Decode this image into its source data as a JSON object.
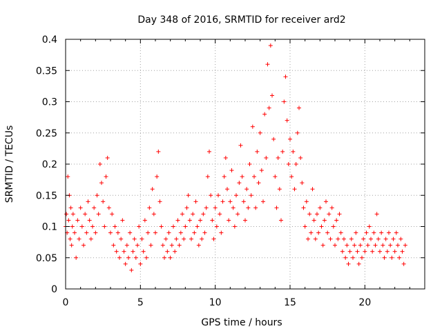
{
  "chart_data": {
    "type": "scatter",
    "title": "Day 348 of 2016, SRMTID for receiver ard2",
    "xlabel": "GPS time / hours",
    "ylabel": "SRMTID / TECUs",
    "xlim": [
      0,
      24
    ],
    "ylim": [
      0,
      0.4
    ],
    "xticks": [
      "0",
      "5",
      "10",
      "15",
      "20"
    ],
    "yticks": [
      "0",
      "0.05",
      "0.1",
      "0.15",
      "0.2",
      "0.25",
      "0.3",
      "0.35",
      "0.4"
    ],
    "grid": true,
    "marker": "+",
    "color": "#ff0000",
    "series": [
      {
        "name": "ard2",
        "points": [
          [
            0.0,
            0.1
          ],
          [
            0.05,
            0.12
          ],
          [
            0.1,
            0.09
          ],
          [
            0.15,
            0.18
          ],
          [
            0.2,
            0.11
          ],
          [
            0.25,
            0.15
          ],
          [
            0.3,
            0.08
          ],
          [
            0.35,
            0.13
          ],
          [
            0.4,
            0.07
          ],
          [
            0.45,
            0.1
          ],
          [
            0.5,
            0.12
          ],
          [
            0.6,
            0.09
          ],
          [
            0.7,
            0.05
          ],
          [
            0.8,
            0.11
          ],
          [
            0.9,
            0.08
          ],
          [
            1.0,
            0.13
          ],
          [
            1.1,
            0.1
          ],
          [
            1.2,
            0.07
          ],
          [
            1.3,
            0.12
          ],
          [
            1.4,
            0.09
          ],
          [
            1.5,
            0.14
          ],
          [
            1.6,
            0.11
          ],
          [
            1.7,
            0.08
          ],
          [
            1.8,
            0.1
          ],
          [
            1.9,
            0.13
          ],
          [
            2.0,
            0.09
          ],
          [
            2.1,
            0.15
          ],
          [
            2.2,
            0.12
          ],
          [
            2.3,
            0.2
          ],
          [
            2.4,
            0.17
          ],
          [
            2.5,
            0.14
          ],
          [
            2.6,
            0.1
          ],
          [
            2.7,
            0.18
          ],
          [
            2.8,
            0.21
          ],
          [
            2.9,
            0.13
          ],
          [
            3.0,
            0.09
          ],
          [
            3.1,
            0.12
          ],
          [
            3.2,
            0.07
          ],
          [
            3.3,
            0.1
          ],
          [
            3.4,
            0.06
          ],
          [
            3.5,
            0.09
          ],
          [
            3.6,
            0.05
          ],
          [
            3.7,
            0.08
          ],
          [
            3.8,
            0.11
          ],
          [
            3.9,
            0.06
          ],
          [
            4.0,
            0.04
          ],
          [
            4.1,
            0.07
          ],
          [
            4.2,
            0.05
          ],
          [
            4.3,
            0.09
          ],
          [
            4.4,
            0.03
          ],
          [
            4.5,
            0.06
          ],
          [
            4.6,
            0.08
          ],
          [
            4.7,
            0.05
          ],
          [
            4.8,
            0.07
          ],
          [
            4.9,
            0.1
          ],
          [
            5.0,
            0.04
          ],
          [
            5.1,
            0.08
          ],
          [
            5.2,
            0.06
          ],
          [
            5.3,
            0.11
          ],
          [
            5.4,
            0.05
          ],
          [
            5.5,
            0.09
          ],
          [
            5.6,
            0.13
          ],
          [
            5.7,
            0.07
          ],
          [
            5.8,
            0.16
          ],
          [
            5.9,
            0.12
          ],
          [
            6.0,
            0.09
          ],
          [
            6.1,
            0.18
          ],
          [
            6.2,
            0.22
          ],
          [
            6.3,
            0.14
          ],
          [
            6.4,
            0.1
          ],
          [
            6.5,
            0.07
          ],
          [
            6.6,
            0.05
          ],
          [
            6.7,
            0.08
          ],
          [
            6.8,
            0.06
          ],
          [
            6.9,
            0.09
          ],
          [
            7.0,
            0.05
          ],
          [
            7.1,
            0.07
          ],
          [
            7.2,
            0.1
          ],
          [
            7.3,
            0.06
          ],
          [
            7.4,
            0.08
          ],
          [
            7.5,
            0.11
          ],
          [
            7.6,
            0.07
          ],
          [
            7.7,
            0.09
          ],
          [
            7.8,
            0.12
          ],
          [
            7.9,
            0.08
          ],
          [
            8.0,
            0.1
          ],
          [
            8.1,
            0.13
          ],
          [
            8.2,
            0.15
          ],
          [
            8.3,
            0.11
          ],
          [
            8.4,
            0.08
          ],
          [
            8.5,
            0.12
          ],
          [
            8.6,
            0.09
          ],
          [
            8.7,
            0.14
          ],
          [
            8.8,
            0.1
          ],
          [
            8.9,
            0.07
          ],
          [
            9.0,
            0.11
          ],
          [
            9.1,
            0.08
          ],
          [
            9.2,
            0.12
          ],
          [
            9.3,
            0.09
          ],
          [
            9.4,
            0.13
          ],
          [
            9.5,
            0.18
          ],
          [
            9.6,
            0.22
          ],
          [
            9.7,
            0.15
          ],
          [
            9.8,
            0.11
          ],
          [
            9.9,
            0.08
          ],
          [
            10.0,
            0.13
          ],
          [
            10.1,
            0.1
          ],
          [
            10.2,
            0.15
          ],
          [
            10.3,
            0.12
          ],
          [
            10.4,
            0.09
          ],
          [
            10.5,
            0.14
          ],
          [
            10.6,
            0.18
          ],
          [
            10.7,
            0.21
          ],
          [
            10.8,
            0.16
          ],
          [
            10.9,
            0.11
          ],
          [
            11.0,
            0.14
          ],
          [
            11.1,
            0.19
          ],
          [
            11.2,
            0.13
          ],
          [
            11.3,
            0.1
          ],
          [
            11.4,
            0.15
          ],
          [
            11.5,
            0.12
          ],
          [
            11.6,
            0.17
          ],
          [
            11.7,
            0.23
          ],
          [
            11.8,
            0.18
          ],
          [
            11.9,
            0.14
          ],
          [
            12.0,
            0.11
          ],
          [
            12.1,
            0.16
          ],
          [
            12.2,
            0.13
          ],
          [
            12.3,
            0.2
          ],
          [
            12.4,
            0.15
          ],
          [
            12.5,
            0.26
          ],
          [
            12.6,
            0.18
          ],
          [
            12.7,
            0.13
          ],
          [
            12.8,
            0.22
          ],
          [
            12.9,
            0.17
          ],
          [
            13.0,
            0.25
          ],
          [
            13.1,
            0.19
          ],
          [
            13.2,
            0.14
          ],
          [
            13.3,
            0.28
          ],
          [
            13.4,
            0.21
          ],
          [
            13.5,
            0.36
          ],
          [
            13.6,
            0.29
          ],
          [
            13.7,
            0.39
          ],
          [
            13.8,
            0.31
          ],
          [
            13.9,
            0.24
          ],
          [
            14.0,
            0.18
          ],
          [
            14.1,
            0.13
          ],
          [
            14.2,
            0.21
          ],
          [
            14.3,
            0.16
          ],
          [
            14.4,
            0.11
          ],
          [
            14.5,
            0.22
          ],
          [
            14.6,
            0.3
          ],
          [
            14.7,
            0.34
          ],
          [
            14.8,
            0.27
          ],
          [
            14.9,
            0.2
          ],
          [
            15.0,
            0.24
          ],
          [
            15.1,
            0.18
          ],
          [
            15.2,
            0.22
          ],
          [
            15.3,
            0.16
          ],
          [
            15.4,
            0.2
          ],
          [
            15.5,
            0.25
          ],
          [
            15.6,
            0.29
          ],
          [
            15.7,
            0.21
          ],
          [
            15.8,
            0.17
          ],
          [
            15.9,
            0.13
          ],
          [
            16.0,
            0.1
          ],
          [
            16.1,
            0.14
          ],
          [
            16.2,
            0.08
          ],
          [
            16.3,
            0.12
          ],
          [
            16.4,
            0.09
          ],
          [
            16.5,
            0.16
          ],
          [
            16.6,
            0.11
          ],
          [
            16.7,
            0.08
          ],
          [
            16.8,
            0.12
          ],
          [
            16.9,
            0.09
          ],
          [
            17.0,
            0.13
          ],
          [
            17.1,
            0.1
          ],
          [
            17.2,
            0.07
          ],
          [
            17.3,
            0.11
          ],
          [
            17.4,
            0.14
          ],
          [
            17.5,
            0.09
          ],
          [
            17.6,
            0.12
          ],
          [
            17.7,
            0.08
          ],
          [
            17.8,
            0.13
          ],
          [
            17.9,
            0.1
          ],
          [
            18.0,
            0.07
          ],
          [
            18.1,
            0.11
          ],
          [
            18.2,
            0.08
          ],
          [
            18.3,
            0.12
          ],
          [
            18.4,
            0.09
          ],
          [
            18.5,
            0.06
          ],
          [
            18.6,
            0.08
          ],
          [
            18.7,
            0.05
          ],
          [
            18.8,
            0.07
          ],
          [
            18.9,
            0.04
          ],
          [
            19.0,
            0.06
          ],
          [
            19.1,
            0.08
          ],
          [
            19.2,
            0.05
          ],
          [
            19.3,
            0.07
          ],
          [
            19.4,
            0.09
          ],
          [
            19.5,
            0.06
          ],
          [
            19.6,
            0.04
          ],
          [
            19.7,
            0.07
          ],
          [
            19.8,
            0.05
          ],
          [
            19.9,
            0.08
          ],
          [
            20.0,
            0.06
          ],
          [
            20.1,
            0.09
          ],
          [
            20.2,
            0.07
          ],
          [
            20.3,
            0.1
          ],
          [
            20.4,
            0.08
          ],
          [
            20.5,
            0.06
          ],
          [
            20.6,
            0.09
          ],
          [
            20.7,
            0.07
          ],
          [
            20.8,
            0.12
          ],
          [
            20.9,
            0.08
          ],
          [
            21.0,
            0.06
          ],
          [
            21.1,
            0.09
          ],
          [
            21.2,
            0.07
          ],
          [
            21.3,
            0.05
          ],
          [
            21.4,
            0.08
          ],
          [
            21.5,
            0.06
          ],
          [
            21.6,
            0.09
          ],
          [
            21.7,
            0.07
          ],
          [
            21.8,
            0.05
          ],
          [
            21.9,
            0.08
          ],
          [
            22.0,
            0.06
          ],
          [
            22.1,
            0.09
          ],
          [
            22.2,
            0.07
          ],
          [
            22.3,
            0.05
          ],
          [
            22.4,
            0.08
          ],
          [
            22.5,
            0.06
          ],
          [
            22.6,
            0.04
          ],
          [
            22.7,
            0.07
          ]
        ]
      }
    ]
  }
}
